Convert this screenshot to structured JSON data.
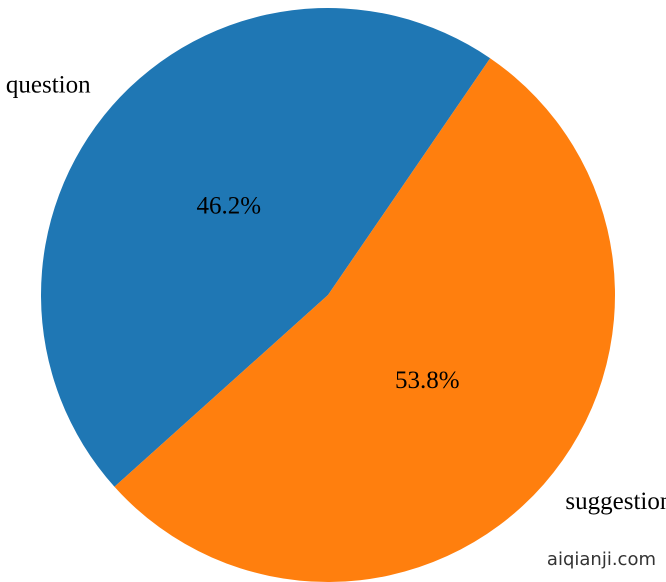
{
  "chart_data": {
    "type": "pie",
    "categories": [
      "question",
      "suggestion"
    ],
    "values": [
      46.2,
      53.8
    ],
    "value_labels": [
      "46.2%",
      "53.8%"
    ],
    "colors": [
      "#1f77b4",
      "#ff7f0e"
    ],
    "watermark": "aiqianji.com"
  }
}
